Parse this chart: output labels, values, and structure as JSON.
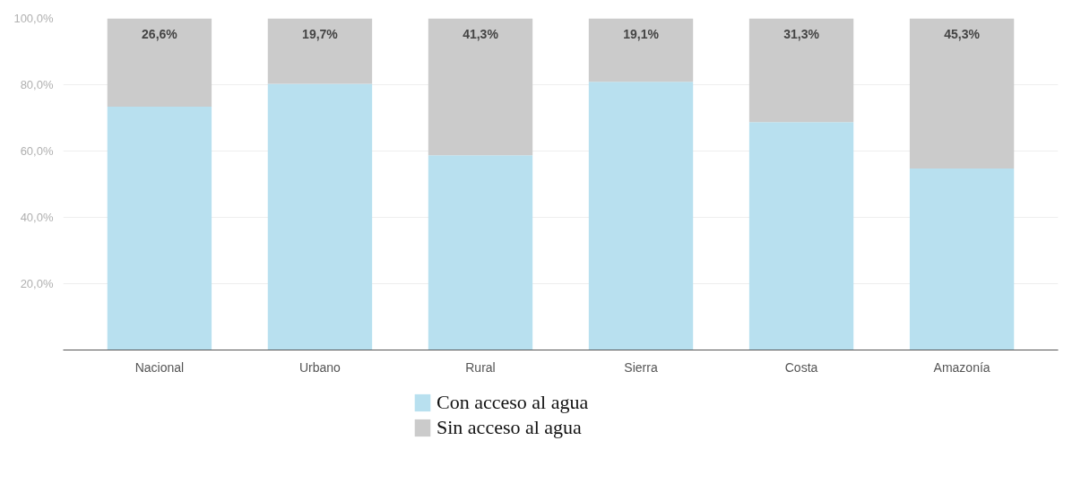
{
  "chart_data": {
    "type": "bar",
    "stacked": true,
    "categories": [
      "Nacional",
      "Urbano",
      "Rural",
      "Sierra",
      "Costa",
      "Amazonía"
    ],
    "series": [
      {
        "name": "Con acceso al agua",
        "color": "#b8e0ef",
        "values": [
          73.4,
          80.3,
          58.7,
          80.9,
          68.7,
          54.7
        ]
      },
      {
        "name": "Sin acceso al agua",
        "color": "#cbcbcb",
        "values": [
          26.6,
          19.7,
          41.3,
          19.1,
          31.3,
          45.3
        ],
        "value_labels": [
          "26,6%",
          "19,7%",
          "41,3%",
          "19,1%",
          "31,3%",
          "45,3%"
        ]
      }
    ],
    "ylim": [
      0,
      100
    ],
    "yticks": [
      {
        "value": 20,
        "label": "20,0%"
      },
      {
        "value": 40,
        "label": "40,0%"
      },
      {
        "value": 60,
        "label": "60,0%"
      },
      {
        "value": 80,
        "label": "80,0%"
      },
      {
        "value": 100,
        "label": "100,0%"
      }
    ],
    "grid": "y",
    "legend": "bottom"
  }
}
